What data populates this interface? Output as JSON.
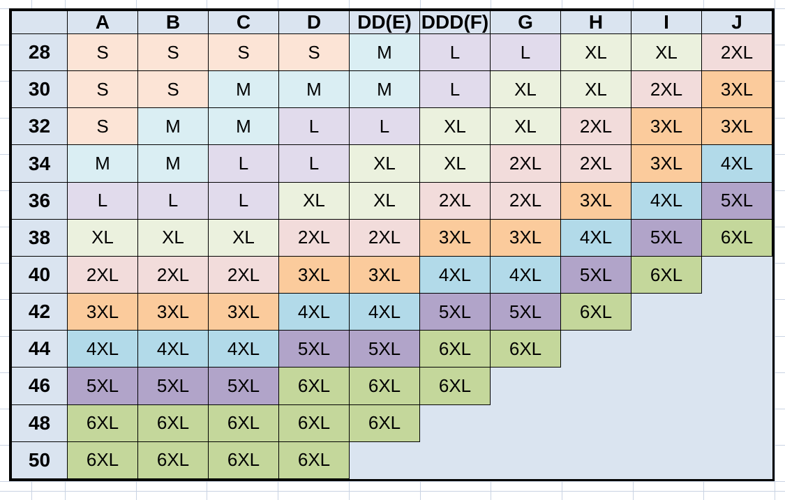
{
  "chart_data": {
    "type": "table",
    "columns": [
      "",
      "A",
      "B",
      "C",
      "D",
      "DD(E)",
      "DDD(F)",
      "G",
      "H",
      "I",
      "J"
    ],
    "row_labels": [
      "28",
      "30",
      "32",
      "34",
      "36",
      "38",
      "40",
      "42",
      "44",
      "46",
      "48",
      "50"
    ],
    "values": [
      [
        "S",
        "S",
        "S",
        "S",
        "M",
        "L",
        "L",
        "XL",
        "XL",
        "2XL"
      ],
      [
        "S",
        "S",
        "M",
        "M",
        "M",
        "L",
        "XL",
        "XL",
        "2XL",
        "3XL"
      ],
      [
        "S",
        "M",
        "M",
        "L",
        "L",
        "XL",
        "XL",
        "2XL",
        "3XL",
        "3XL"
      ],
      [
        "M",
        "M",
        "L",
        "L",
        "XL",
        "XL",
        "2XL",
        "2XL",
        "3XL",
        "4XL"
      ],
      [
        "L",
        "L",
        "L",
        "XL",
        "XL",
        "2XL",
        "2XL",
        "3XL",
        "4XL",
        "5XL"
      ],
      [
        "XL",
        "XL",
        "XL",
        "2XL",
        "2XL",
        "3XL",
        "3XL",
        "4XL",
        "5XL",
        "6XL"
      ],
      [
        "2XL",
        "2XL",
        "2XL",
        "3XL",
        "3XL",
        "4XL",
        "4XL",
        "5XL",
        "6XL",
        null
      ],
      [
        "3XL",
        "3XL",
        "3XL",
        "4XL",
        "4XL",
        "5XL",
        "5XL",
        "6XL",
        null,
        null
      ],
      [
        "4XL",
        "4XL",
        "4XL",
        "5XL",
        "5XL",
        "6XL",
        "6XL",
        null,
        null,
        null
      ],
      [
        "5XL",
        "5XL",
        "5XL",
        "6XL",
        "6XL",
        "6XL",
        null,
        null,
        null,
        null
      ],
      [
        "6XL",
        "6XL",
        "6XL",
        "6XL",
        "6XL",
        null,
        null,
        null,
        null,
        null
      ],
      [
        "6XL",
        "6XL",
        "6XL",
        "6XL",
        null,
        null,
        null,
        null,
        null,
        null
      ]
    ],
    "legend_position": "none",
    "grid": true
  },
  "colors": {
    "header_fill": "#DAE4F0",
    "empty_region_fill": "#DAE4F0",
    "table_border": "#000000",
    "sheet_gridline": "#C9D3E3",
    "sizes": {
      "S": "#FCE4D6",
      "M": "#DAEEF3",
      "L": "#E1DBEC",
      "XL": "#EBF1DE",
      "2XL": "#F2DCDB",
      "3XL": "#FBCB9C",
      "4XL": "#B2DAE9",
      "5XL": "#B1A4C9",
      "6XL": "#C4D79B"
    }
  },
  "layout_lines": {
    "vertical_x": [
      45,
      93,
      194.7,
      296.4,
      398.1,
      499.8,
      601.5,
      703.2,
      804.9,
      906.6,
      1008.3,
      1110
    ],
    "horizontal_y": [
      12,
      64.2,
      116.3,
      168.5,
      220.7,
      272.8,
      325,
      377.2,
      429.3,
      481.5,
      533.7,
      585.8,
      638,
      690,
      703.5
    ]
  }
}
